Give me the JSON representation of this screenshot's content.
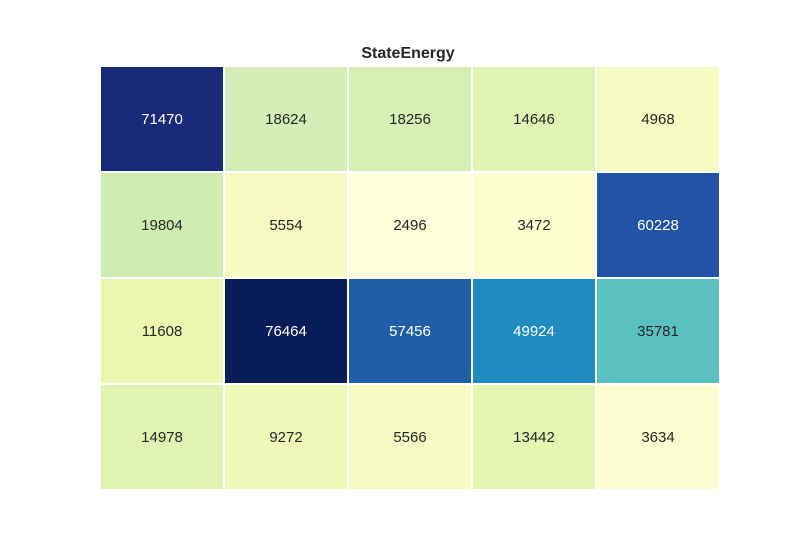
{
  "chart_data": {
    "type": "heatmap",
    "title": "StateEnergy",
    "xlabel": "",
    "ylabel": "",
    "colormap": "YlGnBu",
    "value_range": [
      2496,
      76464
    ],
    "grid": false,
    "colorbar": false,
    "rows": 4,
    "cols": 5,
    "values": [
      [
        71470,
        18624,
        18256,
        14646,
        4968
      ],
      [
        19804,
        5554,
        2496,
        3472,
        60228
      ],
      [
        11608,
        76464,
        57456,
        49924,
        35781
      ],
      [
        14978,
        9272,
        5566,
        13442,
        3634
      ]
    ],
    "cell_colors": [
      [
        "#192a7b",
        "#d3eeb6",
        "#d5efb4",
        "#e2f4b3",
        "#f6fbc4"
      ],
      [
        "#cfecb3",
        "#f5fbc3",
        "#ffffd9",
        "#fcfed0",
        "#2353a4"
      ],
      [
        "#ecf8b1",
        "#081d58",
        "#225ea8",
        "#1f8bbf",
        "#5bc0c0"
      ],
      [
        "#e1f3b2",
        "#f0f9ba",
        "#f5fbc3",
        "#e5f5b2",
        "#fcfed1"
      ]
    ],
    "text_colors": [
      [
        "#ffffff",
        "#262626",
        "#262626",
        "#262626",
        "#262626"
      ],
      [
        "#262626",
        "#262626",
        "#262626",
        "#262626",
        "#ffffff"
      ],
      [
        "#262626",
        "#ffffff",
        "#ffffff",
        "#ffffff",
        "#262626"
      ],
      [
        "#262626",
        "#262626",
        "#262626",
        "#262626",
        "#262626"
      ]
    ]
  }
}
